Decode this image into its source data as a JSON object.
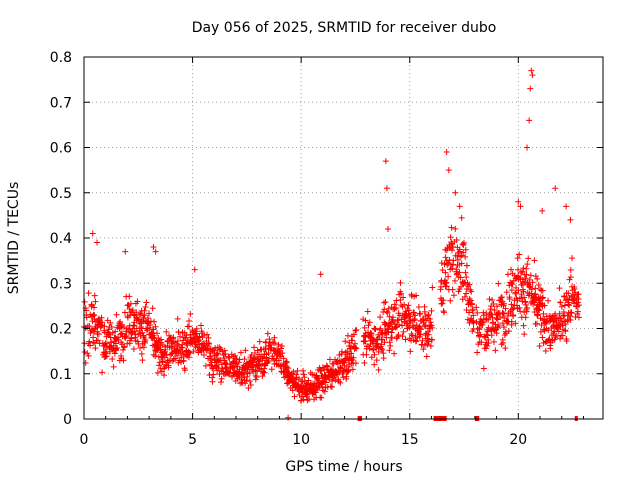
{
  "chart_data": {
    "type": "scatter",
    "title": "Day 056 of 2025, SRMTID for receiver dubo",
    "xlabel": "GPS time / hours",
    "ylabel": "SRMTID / TECUs",
    "xlim": [
      0,
      23.9
    ],
    "ylim": [
      0,
      0.8
    ],
    "xticks": [
      0,
      5,
      10,
      15,
      20
    ],
    "yticks": [
      0,
      0.1,
      0.2,
      0.3,
      0.4,
      0.5,
      0.6,
      0.7,
      0.8
    ],
    "xtick_labels": [
      "0",
      "5",
      "10",
      "15",
      "20"
    ],
    "ytick_labels": [
      "0",
      "0.1",
      "0.2",
      "0.3",
      "0.4",
      "0.5",
      "0.6",
      "0.7",
      "0.8"
    ],
    "grid": true,
    "marker": "+",
    "color": "#ff0000",
    "series": [
      {
        "name": "SRMTID",
        "trend": [
          [
            0.0,
            0.2,
            0.06
          ],
          [
            0.5,
            0.22,
            0.07
          ],
          [
            1.0,
            0.17,
            0.05
          ],
          [
            1.5,
            0.17,
            0.05
          ],
          [
            2.0,
            0.22,
            0.06
          ],
          [
            2.5,
            0.21,
            0.06
          ],
          [
            3.0,
            0.2,
            0.06
          ],
          [
            3.5,
            0.14,
            0.04
          ],
          [
            4.0,
            0.15,
            0.05
          ],
          [
            4.5,
            0.16,
            0.05
          ],
          [
            5.0,
            0.18,
            0.05
          ],
          [
            5.5,
            0.16,
            0.05
          ],
          [
            6.0,
            0.13,
            0.04
          ],
          [
            6.5,
            0.12,
            0.04
          ],
          [
            7.0,
            0.11,
            0.04
          ],
          [
            7.5,
            0.11,
            0.04
          ],
          [
            8.0,
            0.12,
            0.04
          ],
          [
            8.5,
            0.15,
            0.04
          ],
          [
            9.0,
            0.14,
            0.04
          ],
          [
            9.5,
            0.09,
            0.03
          ],
          [
            10.0,
            0.07,
            0.03
          ],
          [
            10.5,
            0.07,
            0.03
          ],
          [
            11.0,
            0.09,
            0.03
          ],
          [
            11.5,
            0.1,
            0.03
          ],
          [
            12.0,
            0.12,
            0.04
          ],
          [
            12.5,
            0.16,
            0.04
          ],
          [
            13.0,
            0.18,
            0.05
          ],
          [
            13.5,
            0.17,
            0.05
          ],
          [
            14.0,
            0.2,
            0.06
          ],
          [
            14.5,
            0.24,
            0.06
          ],
          [
            15.0,
            0.22,
            0.06
          ],
          [
            15.5,
            0.2,
            0.06
          ],
          [
            16.0,
            0.2,
            0.06
          ],
          [
            16.5,
            0.3,
            0.08
          ],
          [
            17.0,
            0.36,
            0.09
          ],
          [
            17.5,
            0.34,
            0.08
          ],
          [
            18.0,
            0.2,
            0.06
          ],
          [
            18.5,
            0.2,
            0.06
          ],
          [
            19.0,
            0.22,
            0.06
          ],
          [
            19.5,
            0.25,
            0.07
          ],
          [
            20.0,
            0.3,
            0.08
          ],
          [
            20.5,
            0.28,
            0.08
          ],
          [
            21.0,
            0.24,
            0.07
          ],
          [
            21.5,
            0.19,
            0.05
          ],
          [
            22.0,
            0.22,
            0.06
          ],
          [
            22.5,
            0.28,
            0.07
          ],
          [
            22.8,
            0.24,
            0.06
          ]
        ],
        "outliers": [
          [
            0.4,
            0.41
          ],
          [
            0.6,
            0.39
          ],
          [
            1.9,
            0.37
          ],
          [
            3.2,
            0.38
          ],
          [
            3.3,
            0.37
          ],
          [
            5.1,
            0.33
          ],
          [
            10.9,
            0.32
          ],
          [
            13.9,
            0.57
          ],
          [
            13.95,
            0.51
          ],
          [
            14.0,
            0.42
          ],
          [
            16.7,
            0.59
          ],
          [
            16.8,
            0.55
          ],
          [
            17.1,
            0.5
          ],
          [
            17.3,
            0.47
          ],
          [
            20.0,
            0.48
          ],
          [
            20.1,
            0.47
          ],
          [
            20.4,
            0.6
          ],
          [
            20.5,
            0.66
          ],
          [
            20.55,
            0.73
          ],
          [
            20.6,
            0.77
          ],
          [
            20.65,
            0.76
          ],
          [
            21.1,
            0.46
          ],
          [
            21.7,
            0.51
          ],
          [
            22.2,
            0.47
          ],
          [
            22.4,
            0.44
          ]
        ],
        "zero_segments": [
          [
            12.6,
            12.8
          ],
          [
            16.1,
            16.7
          ],
          [
            18.0,
            18.2
          ],
          [
            22.6,
            22.7
          ]
        ],
        "zero_points": [
          9.4
        ]
      }
    ]
  }
}
